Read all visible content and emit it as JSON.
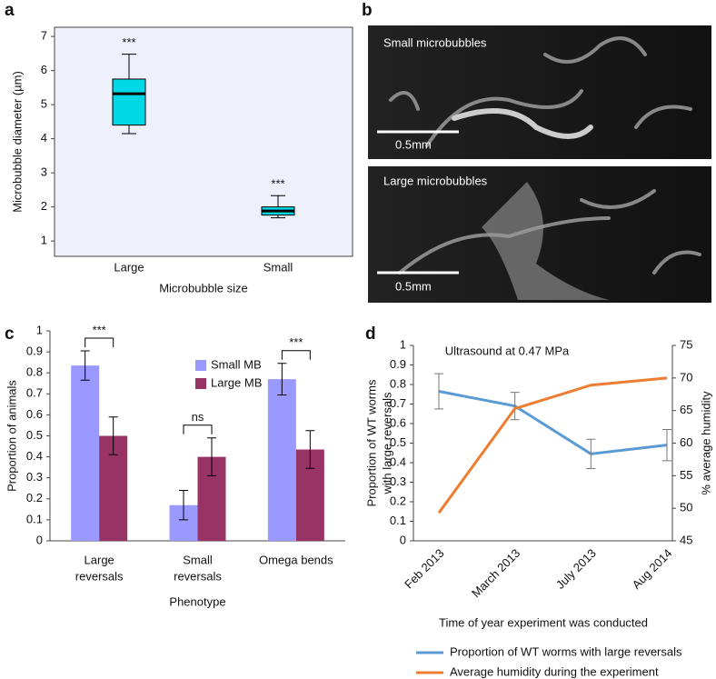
{
  "chart_data": [
    {
      "type": "box",
      "panel": "a",
      "ylabel": "Microbubble diameter (µm)",
      "xlabel": "Microbubble size",
      "categories": [
        "Large",
        "Small"
      ],
      "boxes": [
        {
          "whislo": 4.15,
          "q1": 4.4,
          "med": 5.32,
          "q3": 5.75,
          "whishi": 6.48
        },
        {
          "whislo": 1.68,
          "q1": 1.76,
          "med": 1.88,
          "q3": 2.0,
          "whishi": 2.33
        }
      ],
      "annotations": [
        "***",
        "***"
      ],
      "color": "#00d8e8",
      "background": "#eef0fb",
      "ylim": [
        0.55,
        7.27
      ],
      "yticks": [
        1,
        2,
        3,
        4,
        5,
        6,
        7
      ]
    },
    {
      "type": "bar",
      "panel": "c",
      "ylabel": "Proportion of animals",
      "xlabel": "Phenotype",
      "categories": [
        [
          "Large",
          "reversals"
        ],
        [
          "Small",
          "reversals"
        ],
        [
          "Omega bends"
        ]
      ],
      "series": [
        {
          "name": "Small MB",
          "color": "#9999ff",
          "values": [
            0.835,
            0.17,
            0.77
          ],
          "errors": [
            0.07,
            0.07,
            0.075
          ]
        },
        {
          "name": "Large MB",
          "color": "#993366",
          "values": [
            0.5,
            0.4,
            0.435
          ],
          "errors": [
            0.09,
            0.09,
            0.09
          ]
        }
      ],
      "significance": [
        "***",
        "ns",
        "***"
      ],
      "ylim": [
        0,
        1
      ],
      "yticks": [
        0,
        0.1,
        0.2,
        0.3,
        0.4,
        0.5,
        0.6,
        0.7,
        0.8,
        0.9,
        1
      ]
    },
    {
      "type": "line",
      "panel": "d",
      "title": "Ultrasound at 0.47 MPa",
      "ylabel": [
        "Proportion of WT worms",
        "with large reversals"
      ],
      "y2label": "% average humidity",
      "xlabel": "Time of year experiment was conducted",
      "categories": [
        "Feb 2013",
        "March 2013",
        "July 2013",
        "Aug 2014"
      ],
      "series": [
        {
          "name": "Proportion of WT worms with large reversals",
          "color": "#5b9bd5",
          "values": [
            0.765,
            0.69,
            0.445,
            0.49
          ],
          "errors": [
            0.09,
            0.07,
            0.075,
            0.08
          ]
        },
        {
          "name": "Average humidity during the experiment",
          "color": "#ed7d31",
          "values": [
            49.3,
            65.3,
            68.9,
            70
          ],
          "axis": "y2"
        }
      ],
      "ylim": [
        0,
        1
      ],
      "yticks": [
        0,
        0.1,
        0.2,
        0.3,
        0.4,
        0.5,
        0.6,
        0.7,
        0.8,
        0.9,
        1
      ],
      "y2lim": [
        45,
        75
      ],
      "y2ticks": [
        45,
        50,
        55,
        60,
        65,
        70,
        75
      ]
    }
  ],
  "image_panel": {
    "label": "b",
    "images": [
      {
        "caption": "Small microbubbles",
        "scale_bar": "0.5mm"
      },
      {
        "caption": "Large microbubbles",
        "scale_bar": "0.5mm"
      }
    ]
  }
}
